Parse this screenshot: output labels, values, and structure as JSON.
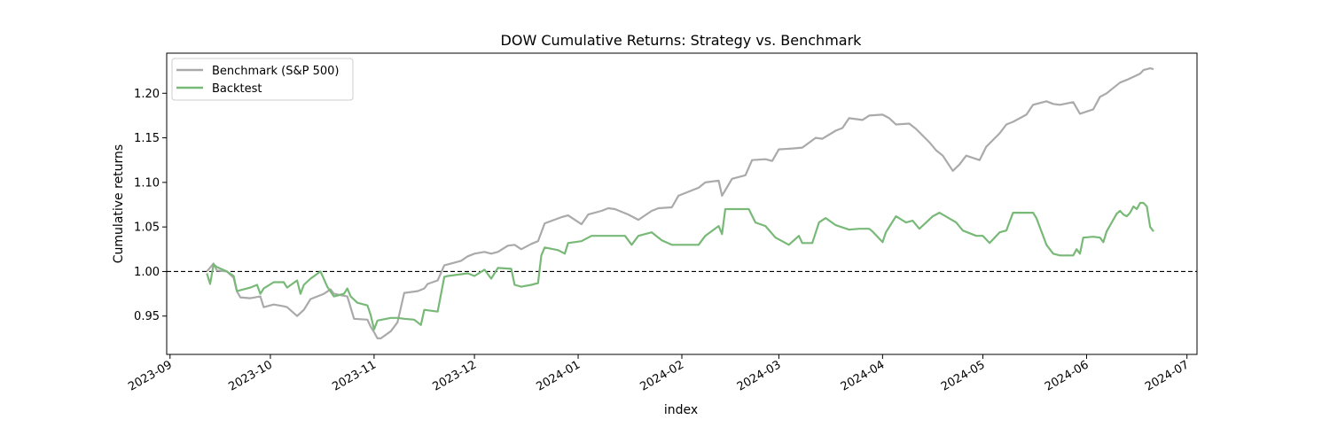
{
  "chart_data": {
    "type": "line",
    "title": "DOW Cumulative Returns: Strategy vs. Benchmark",
    "xlabel": "index",
    "ylabel": "Cumulative returns",
    "x_type": "date",
    "xlim": [
      "2023-08-31",
      "2024-07-04"
    ],
    "ylim": [
      0.907,
      1.245
    ],
    "x_ticks": [
      "2023-09",
      "2023-10",
      "2023-11",
      "2023-12",
      "2024-01",
      "2024-02",
      "2024-03",
      "2024-04",
      "2024-05",
      "2024-06",
      "2024-07"
    ],
    "y_ticks": [
      "0.95",
      "1.00",
      "1.05",
      "1.10",
      "1.15",
      "1.20"
    ],
    "reference_line": {
      "y": 1.0,
      "style": "dashed",
      "color": "#000000"
    },
    "grid": false,
    "legend_position": "top-left",
    "series": [
      {
        "name": "Benchmark (S&P 500)",
        "color": "#aaaaaa",
        "points": [
          [
            "2023-09-12",
            1.0
          ],
          [
            "2023-09-14",
            1.009
          ],
          [
            "2023-09-15",
            1.001
          ],
          [
            "2023-09-18",
            1.0
          ],
          [
            "2023-09-20",
            0.993
          ],
          [
            "2023-09-21",
            0.978
          ],
          [
            "2023-09-22",
            0.971
          ],
          [
            "2023-09-25",
            0.97
          ],
          [
            "2023-09-28",
            0.972
          ],
          [
            "2023-09-29",
            0.96
          ],
          [
            "2023-10-02",
            0.963
          ],
          [
            "2023-10-05",
            0.961
          ],
          [
            "2023-10-06",
            0.96
          ],
          [
            "2023-10-09",
            0.95
          ],
          [
            "2023-10-11",
            0.957
          ],
          [
            "2023-10-13",
            0.969
          ],
          [
            "2023-10-17",
            0.975
          ],
          [
            "2023-10-19",
            0.98
          ],
          [
            "2023-10-20",
            0.975
          ],
          [
            "2023-10-24",
            0.972
          ],
          [
            "2023-10-26",
            0.947
          ],
          [
            "2023-10-30",
            0.946
          ],
          [
            "2023-10-31",
            0.938
          ],
          [
            "2023-11-01",
            0.932
          ],
          [
            "2023-11-02",
            0.925
          ],
          [
            "2023-11-03",
            0.925
          ],
          [
            "2023-11-06",
            0.933
          ],
          [
            "2023-11-08",
            0.943
          ],
          [
            "2023-11-10",
            0.976
          ],
          [
            "2023-11-14",
            0.978
          ],
          [
            "2023-11-16",
            0.981
          ],
          [
            "2023-11-17",
            0.986
          ],
          [
            "2023-11-20",
            0.99
          ],
          [
            "2023-11-22",
            1.007
          ],
          [
            "2023-11-24",
            1.009
          ],
          [
            "2023-11-27",
            1.012
          ],
          [
            "2023-11-29",
            1.017
          ],
          [
            "2023-12-01",
            1.02
          ],
          [
            "2023-12-04",
            1.022
          ],
          [
            "2023-12-06",
            1.02
          ],
          [
            "2023-12-08",
            1.022
          ],
          [
            "2023-12-11",
            1.029
          ],
          [
            "2023-12-13",
            1.03
          ],
          [
            "2023-12-15",
            1.025
          ],
          [
            "2023-12-18",
            1.031
          ],
          [
            "2023-12-20",
            1.034
          ],
          [
            "2023-12-22",
            1.054
          ],
          [
            "2023-12-27",
            1.061
          ],
          [
            "2023-12-29",
            1.063
          ],
          [
            "2024-01-02",
            1.053
          ],
          [
            "2024-01-04",
            1.064
          ],
          [
            "2024-01-08",
            1.068
          ],
          [
            "2024-01-10",
            1.071
          ],
          [
            "2024-01-12",
            1.07
          ],
          [
            "2024-01-16",
            1.064
          ],
          [
            "2024-01-19",
            1.058
          ],
          [
            "2024-01-23",
            1.068
          ],
          [
            "2024-01-25",
            1.071
          ],
          [
            "2024-01-29",
            1.072
          ],
          [
            "2024-01-31",
            1.085
          ],
          [
            "2024-02-02",
            1.088
          ],
          [
            "2024-02-06",
            1.094
          ],
          [
            "2024-02-08",
            1.1
          ],
          [
            "2024-02-12",
            1.102
          ],
          [
            "2024-02-13",
            1.085
          ],
          [
            "2024-02-16",
            1.104
          ],
          [
            "2024-02-20",
            1.108
          ],
          [
            "2024-02-22",
            1.125
          ],
          [
            "2024-02-26",
            1.126
          ],
          [
            "2024-02-28",
            1.124
          ],
          [
            "2024-03-01",
            1.137
          ],
          [
            "2024-03-05",
            1.138
          ],
          [
            "2024-03-08",
            1.139
          ],
          [
            "2024-03-12",
            1.15
          ],
          [
            "2024-03-14",
            1.149
          ],
          [
            "2024-03-18",
            1.158
          ],
          [
            "2024-03-20",
            1.161
          ],
          [
            "2024-03-22",
            1.172
          ],
          [
            "2024-03-26",
            1.17
          ],
          [
            "2024-03-28",
            1.175
          ],
          [
            "2024-04-01",
            1.176
          ],
          [
            "2024-04-03",
            1.172
          ],
          [
            "2024-04-05",
            1.165
          ],
          [
            "2024-04-09",
            1.166
          ],
          [
            "2024-04-11",
            1.16
          ],
          [
            "2024-04-15",
            1.145
          ],
          [
            "2024-04-17",
            1.136
          ],
          [
            "2024-04-19",
            1.13
          ],
          [
            "2024-04-22",
            1.113
          ],
          [
            "2024-04-24",
            1.12
          ],
          [
            "2024-04-26",
            1.13
          ],
          [
            "2024-04-30",
            1.125
          ],
          [
            "2024-05-02",
            1.14
          ],
          [
            "2024-05-06",
            1.155
          ],
          [
            "2024-05-08",
            1.165
          ],
          [
            "2024-05-10",
            1.168
          ],
          [
            "2024-05-14",
            1.176
          ],
          [
            "2024-05-16",
            1.187
          ],
          [
            "2024-05-20",
            1.191
          ],
          [
            "2024-05-22",
            1.188
          ],
          [
            "2024-05-24",
            1.187
          ],
          [
            "2024-05-28",
            1.19
          ],
          [
            "2024-05-30",
            1.177
          ],
          [
            "2024-06-03",
            1.182
          ],
          [
            "2024-06-05",
            1.196
          ],
          [
            "2024-06-07",
            1.2
          ],
          [
            "2024-06-11",
            1.212
          ],
          [
            "2024-06-13",
            1.215
          ],
          [
            "2024-06-17",
            1.222
          ],
          [
            "2024-06-18",
            1.226
          ],
          [
            "2024-06-20",
            1.228
          ],
          [
            "2024-06-21",
            1.227
          ]
        ]
      },
      {
        "name": "Backtest",
        "color": "#78b978",
        "points": [
          [
            "2023-09-12",
            0.998
          ],
          [
            "2023-09-13",
            0.986
          ],
          [
            "2023-09-14",
            1.008
          ],
          [
            "2023-09-15",
            1.005
          ],
          [
            "2023-09-18",
            1.0
          ],
          [
            "2023-09-20",
            0.995
          ],
          [
            "2023-09-21",
            0.978
          ],
          [
            "2023-09-25",
            0.982
          ],
          [
            "2023-09-27",
            0.985
          ],
          [
            "2023-09-28",
            0.975
          ],
          [
            "2023-09-29",
            0.981
          ],
          [
            "2023-10-02",
            0.988
          ],
          [
            "2023-10-05",
            0.988
          ],
          [
            "2023-10-06",
            0.982
          ],
          [
            "2023-10-09",
            0.99
          ],
          [
            "2023-10-10",
            0.975
          ],
          [
            "2023-10-11",
            0.985
          ],
          [
            "2023-10-13",
            0.992
          ],
          [
            "2023-10-16",
            1.0
          ],
          [
            "2023-10-18",
            0.983
          ],
          [
            "2023-10-20",
            0.972
          ],
          [
            "2023-10-23",
            0.975
          ],
          [
            "2023-10-24",
            0.981
          ],
          [
            "2023-10-25",
            0.972
          ],
          [
            "2023-10-27",
            0.965
          ],
          [
            "2023-10-30",
            0.962
          ],
          [
            "2023-10-31",
            0.951
          ],
          [
            "2023-11-01",
            0.935
          ],
          [
            "2023-11-02",
            0.945
          ],
          [
            "2023-11-06",
            0.948
          ],
          [
            "2023-11-08",
            0.948
          ],
          [
            "2023-11-10",
            0.947
          ],
          [
            "2023-11-13",
            0.946
          ],
          [
            "2023-11-15",
            0.94
          ],
          [
            "2023-11-16",
            0.957
          ],
          [
            "2023-11-20",
            0.955
          ],
          [
            "2023-11-22",
            0.994
          ],
          [
            "2023-11-23",
            0.995
          ],
          [
            "2023-11-27",
            0.997
          ],
          [
            "2023-11-29",
            0.998
          ],
          [
            "2023-12-01",
            0.995
          ],
          [
            "2023-12-04",
            1.002
          ],
          [
            "2023-12-06",
            0.992
          ],
          [
            "2023-12-08",
            1.004
          ],
          [
            "2023-12-12",
            1.003
          ],
          [
            "2023-12-13",
            0.985
          ],
          [
            "2023-12-15",
            0.983
          ],
          [
            "2023-12-18",
            0.985
          ],
          [
            "2023-12-20",
            0.987
          ],
          [
            "2023-12-21",
            1.018
          ],
          [
            "2023-12-22",
            1.027
          ],
          [
            "2023-12-26",
            1.024
          ],
          [
            "2023-12-28",
            1.02
          ],
          [
            "2023-12-29",
            1.032
          ],
          [
            "2024-01-02",
            1.034
          ],
          [
            "2024-01-05",
            1.04
          ],
          [
            "2024-01-10",
            1.04
          ],
          [
            "2024-01-15",
            1.04
          ],
          [
            "2024-01-17",
            1.03
          ],
          [
            "2024-01-19",
            1.04
          ],
          [
            "2024-01-23",
            1.044
          ],
          [
            "2024-01-26",
            1.035
          ],
          [
            "2024-01-29",
            1.03
          ],
          [
            "2024-02-01",
            1.03
          ],
          [
            "2024-02-06",
            1.03
          ],
          [
            "2024-02-08",
            1.04
          ],
          [
            "2024-02-12",
            1.051
          ],
          [
            "2024-02-13",
            1.042
          ],
          [
            "2024-02-14",
            1.07
          ],
          [
            "2024-02-16",
            1.07
          ],
          [
            "2024-02-21",
            1.07
          ],
          [
            "2024-02-23",
            1.055
          ],
          [
            "2024-02-26",
            1.051
          ],
          [
            "2024-02-29",
            1.038
          ],
          [
            "2024-03-01",
            1.036
          ],
          [
            "2024-03-04",
            1.03
          ],
          [
            "2024-03-07",
            1.04
          ],
          [
            "2024-03-08",
            1.032
          ],
          [
            "2024-03-11",
            1.032
          ],
          [
            "2024-03-13",
            1.055
          ],
          [
            "2024-03-15",
            1.06
          ],
          [
            "2024-03-18",
            1.052
          ],
          [
            "2024-03-22",
            1.047
          ],
          [
            "2024-03-25",
            1.048
          ],
          [
            "2024-03-28",
            1.048
          ],
          [
            "2024-03-29",
            1.045
          ],
          [
            "2024-04-01",
            1.033
          ],
          [
            "2024-04-02",
            1.044
          ],
          [
            "2024-04-05",
            1.062
          ],
          [
            "2024-04-08",
            1.055
          ],
          [
            "2024-04-10",
            1.057
          ],
          [
            "2024-04-12",
            1.048
          ],
          [
            "2024-04-16",
            1.062
          ],
          [
            "2024-04-18",
            1.066
          ],
          [
            "2024-04-23",
            1.055
          ],
          [
            "2024-04-25",
            1.046
          ],
          [
            "2024-04-29",
            1.04
          ],
          [
            "2024-05-01",
            1.04
          ],
          [
            "2024-05-03",
            1.032
          ],
          [
            "2024-05-06",
            1.044
          ],
          [
            "2024-05-08",
            1.046
          ],
          [
            "2024-05-10",
            1.066
          ],
          [
            "2024-05-14",
            1.066
          ],
          [
            "2024-05-16",
            1.066
          ],
          [
            "2024-05-17",
            1.06
          ],
          [
            "2024-05-20",
            1.03
          ],
          [
            "2024-05-22",
            1.02
          ],
          [
            "2024-05-24",
            1.018
          ],
          [
            "2024-05-28",
            1.018
          ],
          [
            "2024-05-29",
            1.025
          ],
          [
            "2024-05-30",
            1.02
          ],
          [
            "2024-05-31",
            1.038
          ],
          [
            "2024-06-03",
            1.039
          ],
          [
            "2024-06-05",
            1.038
          ],
          [
            "2024-06-06",
            1.033
          ],
          [
            "2024-06-07",
            1.045
          ],
          [
            "2024-06-10",
            1.065
          ],
          [
            "2024-06-11",
            1.068
          ],
          [
            "2024-06-12",
            1.064
          ],
          [
            "2024-06-13",
            1.062
          ],
          [
            "2024-06-14",
            1.066
          ],
          [
            "2024-06-15",
            1.073
          ],
          [
            "2024-06-16",
            1.07
          ],
          [
            "2024-06-17",
            1.077
          ],
          [
            "2024-06-18",
            1.077
          ],
          [
            "2024-06-19",
            1.073
          ],
          [
            "2024-06-20",
            1.05
          ],
          [
            "2024-06-21",
            1.045
          ]
        ]
      }
    ]
  }
}
